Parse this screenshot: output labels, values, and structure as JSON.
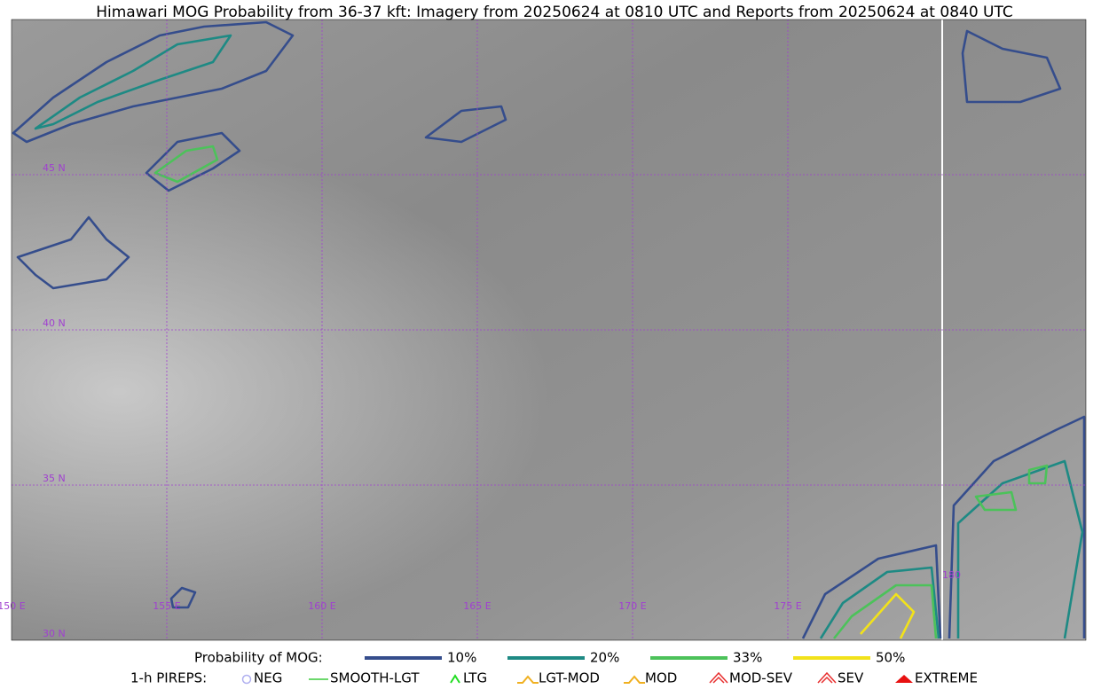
{
  "title": "Himawari MOG Probability from 36-37 kft: Imagery from 20250624 at 0810 UTC and Reports from 20250624 at 0840 UTC",
  "map": {
    "lat_labels": [
      "45 N",
      "40 N",
      "35 N",
      "30 N"
    ],
    "lon_labels": [
      "150 E",
      "155 E",
      "160 E",
      "165 E",
      "170 E",
      "175 E",
      "180"
    ]
  },
  "legend": {
    "mog_label": "Probability of MOG:",
    "mog_levels": [
      {
        "label": "10%",
        "color": "#354d8c"
      },
      {
        "label": "20%",
        "color": "#1e8a84"
      },
      {
        "label": "33%",
        "color": "#4cc25a"
      },
      {
        "label": "50%",
        "color": "#f2e21a"
      }
    ],
    "pirep_label": "1-h PIREPS:",
    "pireps": [
      {
        "label": "NEG",
        "color": "#b0b0f0"
      },
      {
        "label": "SMOOTH-LGT",
        "color": "#3ccc3c"
      },
      {
        "label": "LTG",
        "color": "#22dd22"
      },
      {
        "label": "LGT-MOD",
        "color": "#f0b020"
      },
      {
        "label": "MOD",
        "color": "#f0b020"
      },
      {
        "label": "MOD-SEV",
        "color": "#e83030"
      },
      {
        "label": "SEV",
        "color": "#e83030"
      },
      {
        "label": "EXTREME",
        "color": "#e81010"
      }
    ]
  }
}
